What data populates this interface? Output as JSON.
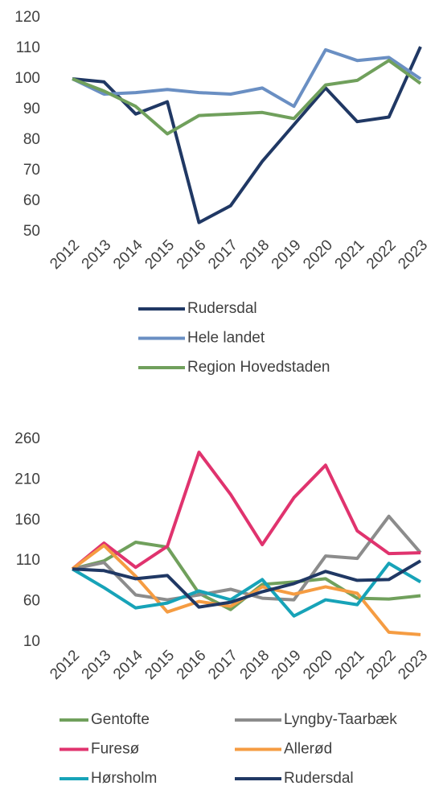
{
  "chart_data": [
    {
      "type": "line",
      "categories": [
        "2012",
        "2013",
        "2014",
        "2015",
        "2016",
        "2017",
        "2018",
        "2019",
        "2020",
        "2021",
        "2022",
        "2023"
      ],
      "series": [
        {
          "name": "Rudersdal",
          "color": "#203864",
          "values": [
            100,
            99,
            88.5,
            92.5,
            53,
            58.5,
            73,
            85,
            97,
            86,
            87.5,
            110.5
          ]
        },
        {
          "name": "Hele landet",
          "color": "#6a8fc3",
          "values": [
            100,
            95,
            95.5,
            96.5,
            95.5,
            95,
            97,
            91,
            109.5,
            106,
            107,
            100
          ]
        },
        {
          "name": "Region Hovedstaden",
          "color": "#70a05c",
          "values": [
            100,
            96,
            91,
            82,
            88,
            88.5,
            89,
            87,
            98,
            99.5,
            106,
            98.5
          ]
        }
      ],
      "ylim": [
        50,
        120
      ],
      "yticks": [
        50,
        60,
        70,
        80,
        90,
        100,
        110,
        120
      ],
      "grid": false,
      "legend": "bottom"
    },
    {
      "type": "line",
      "categories": [
        "2012",
        "2013",
        "2014",
        "2015",
        "2016",
        "2017",
        "2018",
        "2019",
        "2020",
        "2021",
        "2022",
        "2023"
      ],
      "series": [
        {
          "name": "Gentofte",
          "color": "#70a05c",
          "values": [
            100,
            110,
            133,
            127,
            70,
            50,
            81,
            84,
            88,
            64,
            63,
            67
          ]
        },
        {
          "name": "Lyngby-Taarbæk",
          "color": "#8c8c8c",
          "values": [
            100,
            108,
            68,
            62,
            68,
            75,
            64,
            62,
            116,
            113,
            165,
            120
          ]
        },
        {
          "name": "Furesø",
          "color": "#e0336e",
          "values": [
            100,
            132,
            102,
            128,
            244,
            192,
            130,
            188,
            228,
            147,
            119,
            120
          ]
        },
        {
          "name": "Allerød",
          "color": "#f59c42",
          "values": [
            100,
            129,
            91,
            47,
            60,
            54,
            78,
            69,
            78,
            70,
            22,
            19
          ]
        },
        {
          "name": "Hørsholm",
          "color": "#17a3b8",
          "values": [
            100,
            77,
            52,
            58,
            73,
            62,
            87,
            42,
            62,
            56,
            107,
            84
          ]
        },
        {
          "name": "Rudersdal",
          "color": "#203864",
          "values": [
            100,
            98,
            88,
            92,
            53,
            59,
            72,
            82,
            97,
            86,
            87,
            110
          ]
        }
      ],
      "ylim": [
        10,
        260
      ],
      "yticks": [
        10,
        60,
        110,
        160,
        210,
        260
      ],
      "grid": false,
      "legend": "bottom"
    }
  ]
}
